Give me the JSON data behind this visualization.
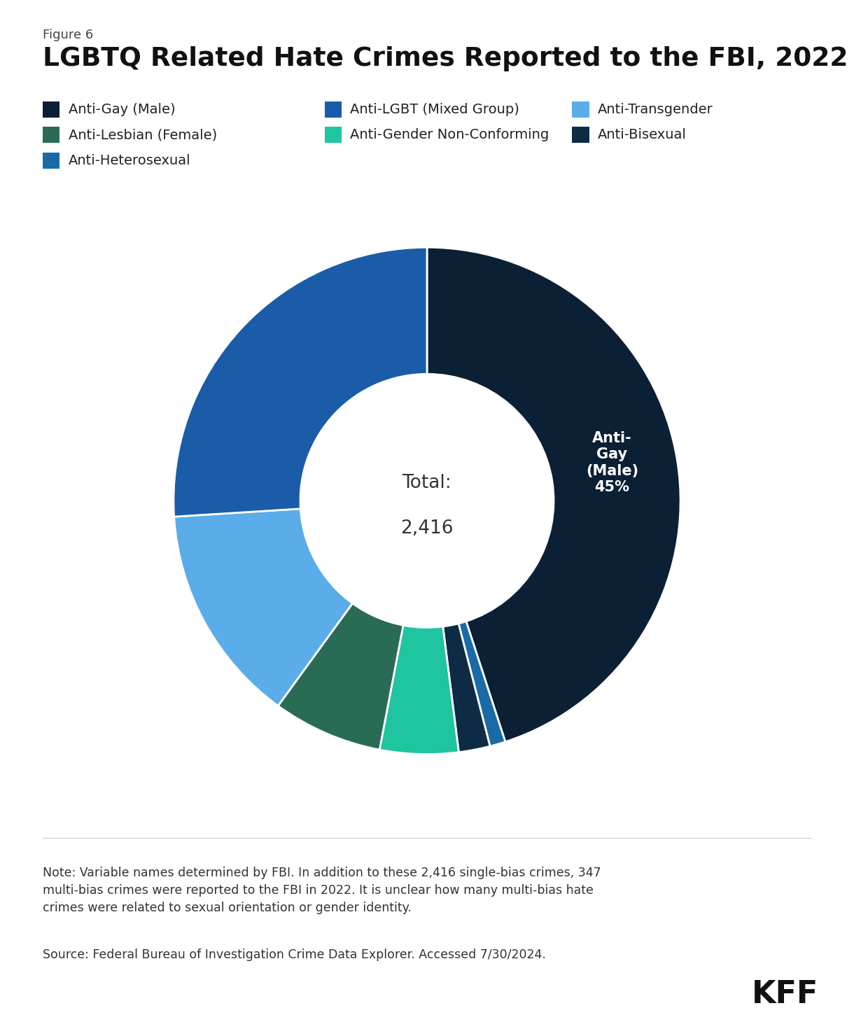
{
  "figure_label": "Figure 6",
  "title": "LGBTQ Related Hate Crimes Reported to the FBI, 2022",
  "categories": [
    "Anti-Gay (Male)",
    "Anti-LGBT (Mixed Group)",
    "Anti-Transgender",
    "Anti-Lesbian (Female)",
    "Anti-Gender Non-Conforming",
    "Anti-Bisexual",
    "Anti-Heterosexual"
  ],
  "percentages": [
    45,
    26,
    14,
    7,
    5,
    2,
    1
  ],
  "colors": [
    "#0b1f35",
    "#1a5ca8",
    "#5aade8",
    "#2a6b55",
    "#1fc4a0",
    "#0d2b45",
    "#1a6aa8"
  ],
  "note_text": "Note: Variable names determined by FBI. In addition to these 2,416 single-bias crimes, 347\nmulti-bias crimes were reported to the FBI in 2022. It is unclear how many multi-bias hate\ncrimes were related to sexual orientation or gender identity.",
  "source_text": "Source: Federal Bureau of Investigation Crime Data Explorer. Accessed 7/30/2024.",
  "bg_color": "#ffffff",
  "total_text_line1": "Total:",
  "total_text_line2": "2,416"
}
